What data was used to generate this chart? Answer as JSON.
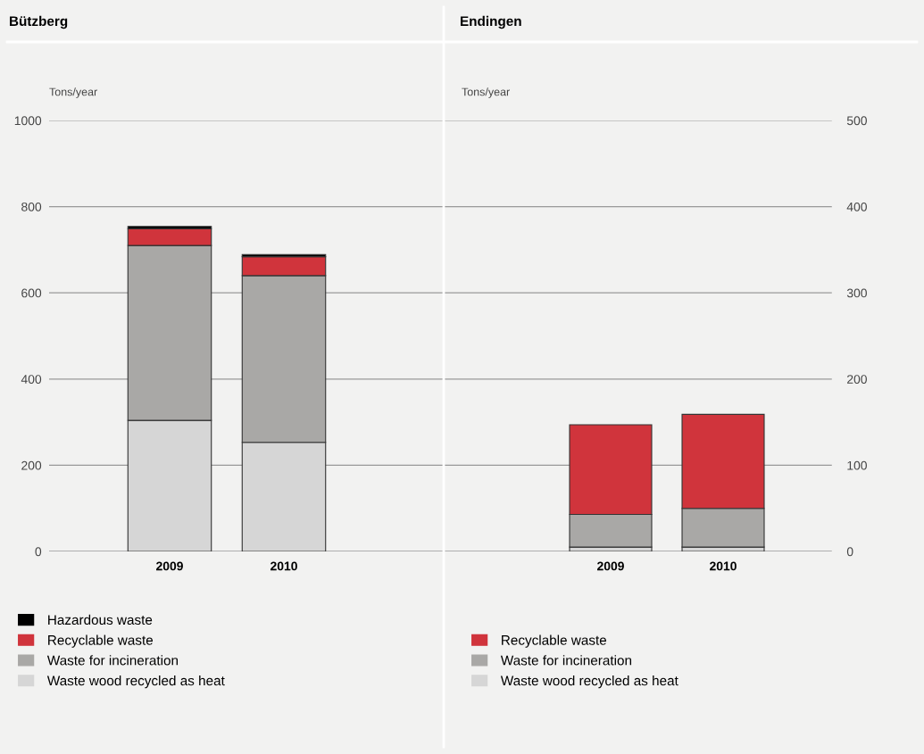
{
  "chart_data": [
    {
      "type": "bar",
      "title": "Bützberg",
      "ylabel": "Tons/year",
      "categories": [
        "2009",
        "2010"
      ],
      "stacked": true,
      "ylim": [
        0,
        1000
      ],
      "yticks": [
        0,
        200,
        400,
        600,
        800,
        1000
      ],
      "grid": "y",
      "legend": "bottom",
      "series": [
        {
          "name": "Waste wood recycled as heat",
          "color": "#d6d6d6",
          "values": [
            304,
            253
          ]
        },
        {
          "name": "Waste for incineration",
          "color": "#a9a8a6",
          "values": [
            406,
            387
          ]
        },
        {
          "name": "Recyclable waste",
          "color": "#d0343c",
          "values": [
            39,
            44
          ]
        },
        {
          "name": "Hazardous waste",
          "color": "#000000",
          "values": [
            5,
            5
          ]
        }
      ]
    },
    {
      "type": "bar",
      "title": "Endingen",
      "ylabel": "Tons/year",
      "categories": [
        "2009",
        "2010"
      ],
      "stacked": true,
      "ylim": [
        0,
        500
      ],
      "yticks": [
        0,
        100,
        200,
        300,
        400,
        500
      ],
      "grid": "y",
      "legend": "bottom",
      "series": [
        {
          "name": "Waste wood recycled as heat",
          "color": "#d6d6d6",
          "values": [
            5,
            5
          ]
        },
        {
          "name": "Waste for incineration",
          "color": "#a9a8a6",
          "values": [
            38,
            45
          ]
        },
        {
          "name": "Recyclable waste",
          "color": "#d0343c",
          "values": [
            104,
            109
          ]
        }
      ]
    }
  ]
}
